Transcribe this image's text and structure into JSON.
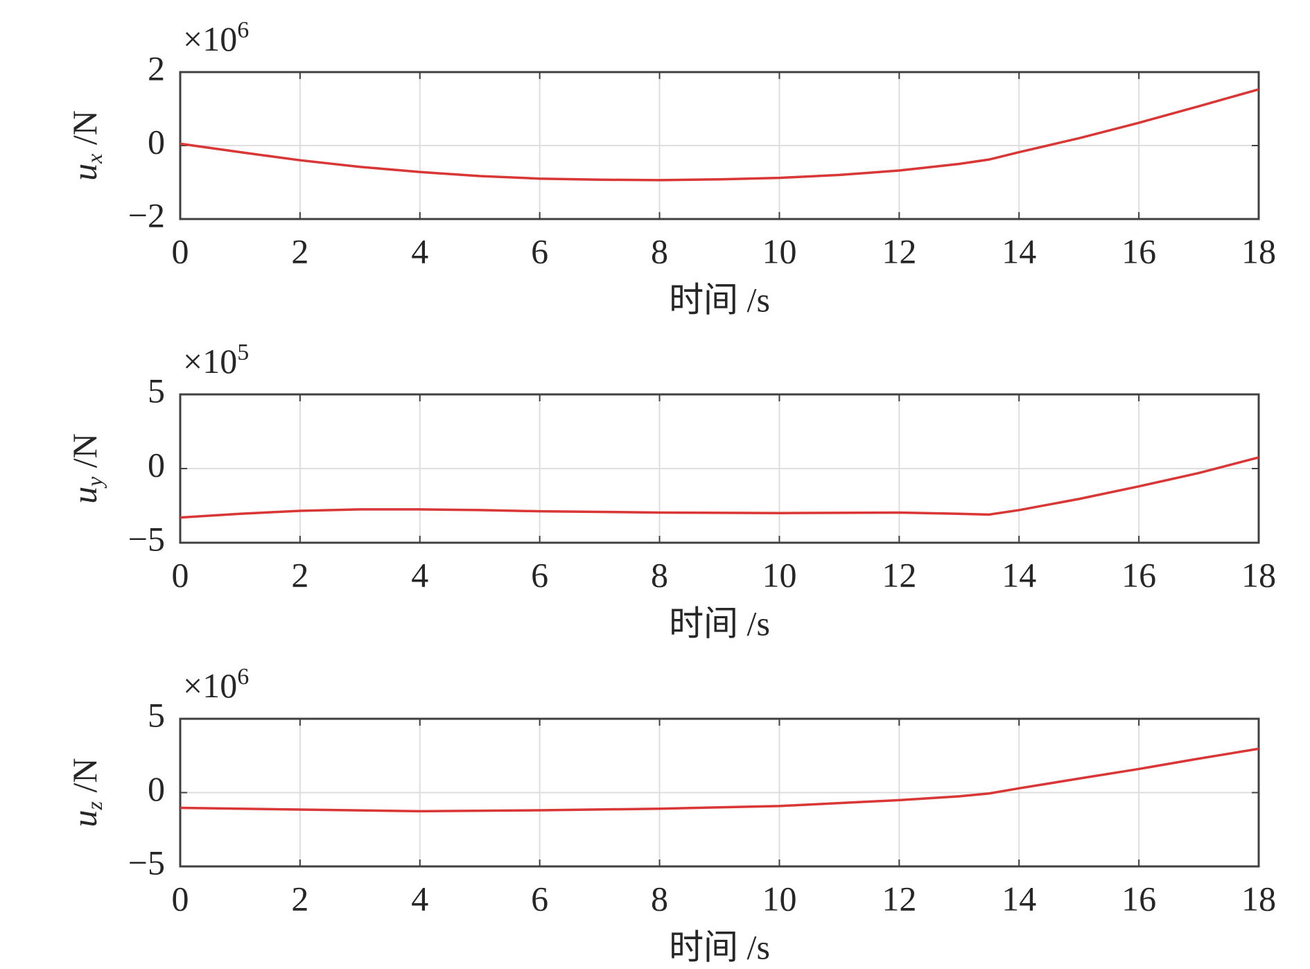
{
  "chart_data": [
    {
      "type": "line",
      "xlabel": "时间 /s",
      "ylabel": {
        "symbol": "u",
        "subscript": "x",
        "unit": " /N"
      },
      "multiplier": {
        "base": "×10",
        "exponent": "6"
      },
      "x": [
        0,
        1,
        2,
        3,
        4,
        5,
        6,
        7,
        8,
        9,
        10,
        11,
        12,
        13,
        13.5,
        14,
        15,
        16,
        17,
        18
      ],
      "series": [
        {
          "color": "#d93636",
          "values": [
            0.05,
            -0.18,
            -0.4,
            -0.58,
            -0.72,
            -0.83,
            -0.9,
            -0.93,
            -0.94,
            -0.92,
            -0.88,
            -0.8,
            -0.68,
            -0.5,
            -0.38,
            -0.18,
            0.2,
            0.62,
            1.07,
            1.53
          ]
        }
      ],
      "xlim": [
        0,
        18
      ],
      "xticks": [
        0,
        2,
        4,
        6,
        8,
        10,
        12,
        14,
        16,
        18
      ],
      "ylim": [
        -2,
        2
      ],
      "yticks": [
        {
          "value": -2,
          "label": "−2"
        },
        0,
        2
      ],
      "grid": true
    },
    {
      "type": "line",
      "xlabel": "时间 /s",
      "ylabel": {
        "symbol": "u",
        "subscript": "y",
        "unit": " /N"
      },
      "multiplier": {
        "base": "×10",
        "exponent": "5"
      },
      "x": [
        0,
        1,
        2,
        3,
        4,
        5,
        6,
        7,
        8,
        10,
        12,
        13,
        13.5,
        14,
        15,
        16,
        17,
        18
      ],
      "series": [
        {
          "color": "#d93636",
          "values": [
            -3.3,
            -3.05,
            -2.85,
            -2.75,
            -2.75,
            -2.8,
            -2.88,
            -2.92,
            -2.97,
            -3.0,
            -2.97,
            -3.05,
            -3.1,
            -2.8,
            -2.05,
            -1.2,
            -0.3,
            0.75
          ]
        }
      ],
      "xlim": [
        0,
        18
      ],
      "xticks": [
        0,
        2,
        4,
        6,
        8,
        10,
        12,
        14,
        16,
        18
      ],
      "ylim": [
        -5,
        5
      ],
      "yticks": [
        {
          "value": -5,
          "label": "−5"
        },
        0,
        5
      ],
      "grid": true
    },
    {
      "type": "line",
      "xlabel": "时间 /s",
      "ylabel": {
        "symbol": "u",
        "subscript": "z",
        "unit": " /N"
      },
      "multiplier": {
        "base": "×10",
        "exponent": "6"
      },
      "x": [
        0,
        2,
        4,
        6,
        8,
        10,
        12,
        13,
        13.5,
        14,
        15,
        16,
        17,
        18
      ],
      "series": [
        {
          "color": "#d93636",
          "values": [
            -1.03,
            -1.15,
            -1.26,
            -1.2,
            -1.09,
            -0.91,
            -0.51,
            -0.25,
            -0.06,
            0.29,
            0.95,
            1.6,
            2.3,
            2.97
          ]
        }
      ],
      "xlim": [
        0,
        18
      ],
      "xticks": [
        0,
        2,
        4,
        6,
        8,
        10,
        12,
        14,
        16,
        18
      ],
      "ylim": [
        -5,
        5
      ],
      "yticks": [
        {
          "value": -5,
          "label": "−5"
        },
        0,
        5
      ],
      "grid": true
    }
  ]
}
